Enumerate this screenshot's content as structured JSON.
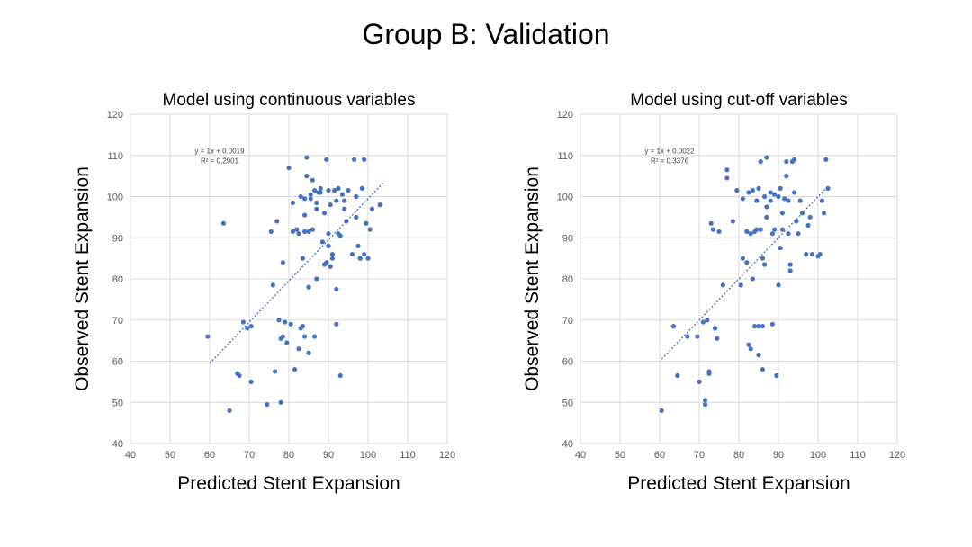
{
  "page_title": "Group B: Validation",
  "colors": {
    "point": "#4472C4",
    "grid": "#D9D9D9",
    "trend": "#4472C4"
  },
  "chart_data": [
    {
      "type": "scatter",
      "title": "Model using continuous variables",
      "xlabel": "Predicted Stent Expansion",
      "ylabel": "Observed Stent Expansion",
      "xlim": [
        40,
        120
      ],
      "ylim": [
        40,
        120
      ],
      "xticks": [
        "40",
        "50",
        "60",
        "70",
        "80",
        "90",
        "100",
        "110",
        "120"
      ],
      "yticks": [
        "40",
        "50",
        "60",
        "70",
        "80",
        "90",
        "100",
        "110",
        "120"
      ],
      "equation": "y = 1x + 0.0019",
      "r_squared": "R² = 0.2901",
      "trendline": {
        "x": [
          60,
          104
        ],
        "y": [
          59.5,
          103.5
        ]
      },
      "x": [
        59.5,
        63.5,
        65,
        67,
        67.5,
        68.5,
        69.5,
        70.5,
        70.5,
        74.5,
        75.5,
        76,
        76.5,
        77,
        77.5,
        78,
        78,
        78.5,
        78.5,
        79,
        79.5,
        80,
        80.5,
        81,
        81,
        81.5,
        82,
        82.5,
        82.5,
        83,
        83,
        83.5,
        83.5,
        84,
        84,
        84,
        84,
        84.5,
        84.5,
        85,
        85,
        85,
        85.5,
        85.5,
        86,
        86,
        86.5,
        86.5,
        87,
        87,
        87,
        87.5,
        88,
        88,
        88.5,
        89,
        89,
        89.5,
        89.5,
        90,
        90,
        90,
        90.5,
        90.5,
        91,
        91,
        91.5,
        92,
        92,
        92,
        92.5,
        92.5,
        93,
        93,
        93.5,
        94,
        94,
        94.5,
        95,
        96,
        96.5,
        97,
        97,
        97.5,
        98,
        98,
        98.5,
        99,
        99,
        99.5,
        100,
        100.5,
        101,
        103
      ],
      "y": [
        66,
        93.5,
        48,
        57,
        56.5,
        69.5,
        68,
        68.5,
        55,
        49.5,
        91.5,
        78.5,
        57.5,
        94,
        70,
        65.5,
        50,
        66,
        84,
        69.5,
        64.5,
        107,
        69,
        91.5,
        98.5,
        58,
        92,
        91,
        63,
        100,
        68,
        85,
        68.5,
        91.5,
        66,
        99.5,
        95.5,
        109.5,
        105,
        62,
        78,
        91.5,
        99.5,
        100.5,
        92,
        104,
        101.5,
        66,
        80,
        97,
        98.5,
        101,
        102,
        101,
        89,
        96,
        83.5,
        84,
        109,
        88,
        91,
        101.5,
        83,
        98,
        85,
        86,
        101.5,
        77.5,
        69,
        99,
        91,
        102,
        56.5,
        90.5,
        100.5,
        97,
        99,
        94,
        101.5,
        86,
        109,
        95,
        100,
        88,
        85,
        85,
        102,
        86,
        109,
        93.5,
        85,
        92,
        97,
        98
      ]
    },
    {
      "type": "scatter",
      "title": "Model using cut-off variables",
      "xlabel": "Predicted Stent Expansion",
      "ylabel": "Observed Stent Expansion",
      "xlim": [
        40,
        120
      ],
      "ylim": [
        40,
        120
      ],
      "xticks": [
        "40",
        "50",
        "60",
        "70",
        "80",
        "90",
        "100",
        "110",
        "120"
      ],
      "yticks": [
        "40",
        "50",
        "60",
        "70",
        "80",
        "90",
        "100",
        "110",
        "120"
      ],
      "equation": "y = 1x + 0.0022",
      "r_squared": "R² = 0.3376",
      "trendline": {
        "x": [
          60.5,
          102.5
        ],
        "y": [
          60.5,
          102.5
        ]
      },
      "x": [
        60.5,
        63.5,
        64.5,
        67,
        69.5,
        70,
        71,
        71.5,
        71.5,
        72,
        72.5,
        72.5,
        73,
        73.5,
        74,
        74.5,
        75,
        76,
        77,
        77,
        78.5,
        79.5,
        80.5,
        81,
        81,
        82,
        82,
        82.5,
        82.5,
        83,
        83,
        83.5,
        83.5,
        84,
        84,
        84.5,
        84.5,
        85,
        85,
        85,
        85.5,
        85.5,
        86,
        86,
        86,
        86.5,
        86.5,
        87,
        87,
        87,
        88,
        88,
        88.5,
        88.5,
        89,
        89,
        89.5,
        90,
        90,
        90.5,
        90.5,
        91,
        91,
        91.5,
        92,
        92,
        92.5,
        92.5,
        93,
        93,
        93.5,
        94,
        94,
        94.5,
        95,
        95.5,
        96,
        97,
        97.5,
        98,
        98.5,
        100,
        100.5,
        101,
        101.5,
        102,
        102.5
      ],
      "y": [
        48,
        68.5,
        56.5,
        66,
        66,
        55,
        69.5,
        49.5,
        50.5,
        70,
        57.5,
        57,
        93.5,
        92,
        68,
        65.5,
        91.5,
        78.5,
        104.5,
        106.5,
        94,
        101.5,
        78.5,
        85,
        99.5,
        91.5,
        84,
        101,
        64,
        63,
        91,
        80,
        101.5,
        91.5,
        68.5,
        99,
        92,
        61.5,
        102,
        68.5,
        92,
        108.5,
        58,
        85,
        68.5,
        83.5,
        100,
        95,
        97.5,
        109.5,
        101,
        99,
        69,
        91,
        100.5,
        92,
        56.5,
        78.5,
        100,
        102,
        87.5,
        92,
        96,
        99.5,
        105,
        108.5,
        99,
        91,
        83.5,
        82,
        108.5,
        109,
        101,
        94,
        91,
        99,
        96,
        86,
        93,
        95,
        86,
        85.5,
        86,
        99,
        96,
        109,
        102
      ]
    }
  ]
}
